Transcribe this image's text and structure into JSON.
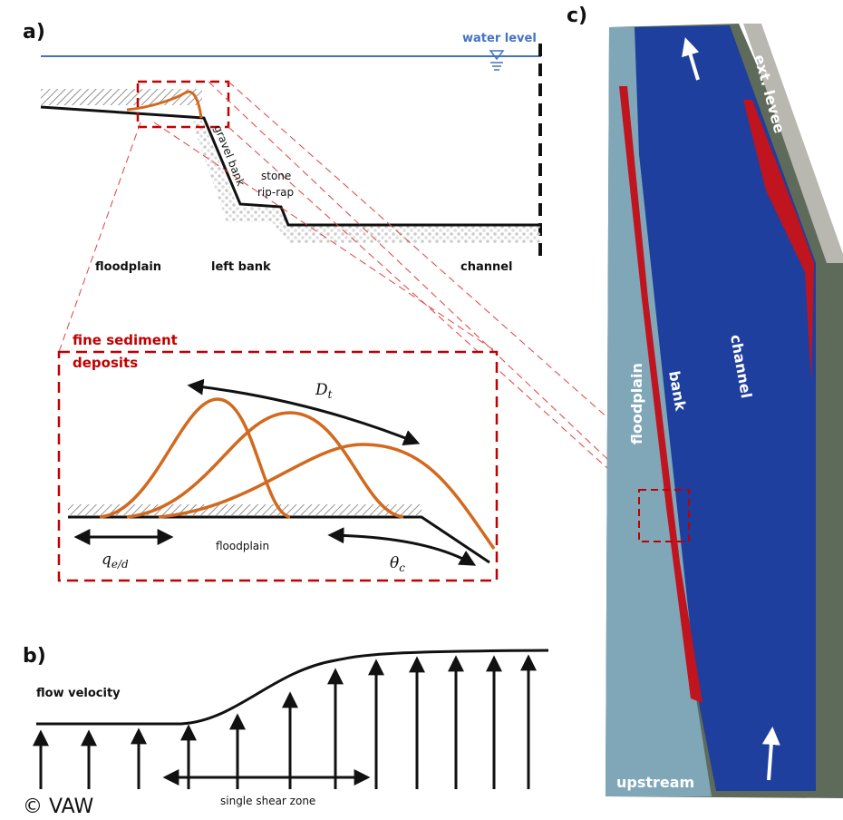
{
  "panel_a": {
    "label": "a)",
    "water_level": "water level",
    "gravel_bank": "gravel bank",
    "stone_riprap": [
      "stone",
      "rip-rap"
    ],
    "zones": [
      "floodplain",
      "left bank",
      "channel"
    ],
    "inset": {
      "title": [
        "fine sediment",
        "deposits"
      ],
      "transport": {
        "symbol": "D",
        "subscript": "t"
      },
      "erosion_deposition": {
        "symbol": "q",
        "subscript": "e/d"
      },
      "surface": "floodplain",
      "slope": {
        "symbol": "θ",
        "subscript": "c"
      }
    }
  },
  "panel_b": {
    "label": "b)",
    "flow_velocity": "flow velocity",
    "shear_zone": "single shear zone"
  },
  "copyright": "© VAW",
  "panel_c": {
    "label": "c)",
    "ext_levee": "ext. levee",
    "floodplain": "floodplain",
    "bank": "bank",
    "channel": "channel",
    "upstream": "upstream"
  }
}
